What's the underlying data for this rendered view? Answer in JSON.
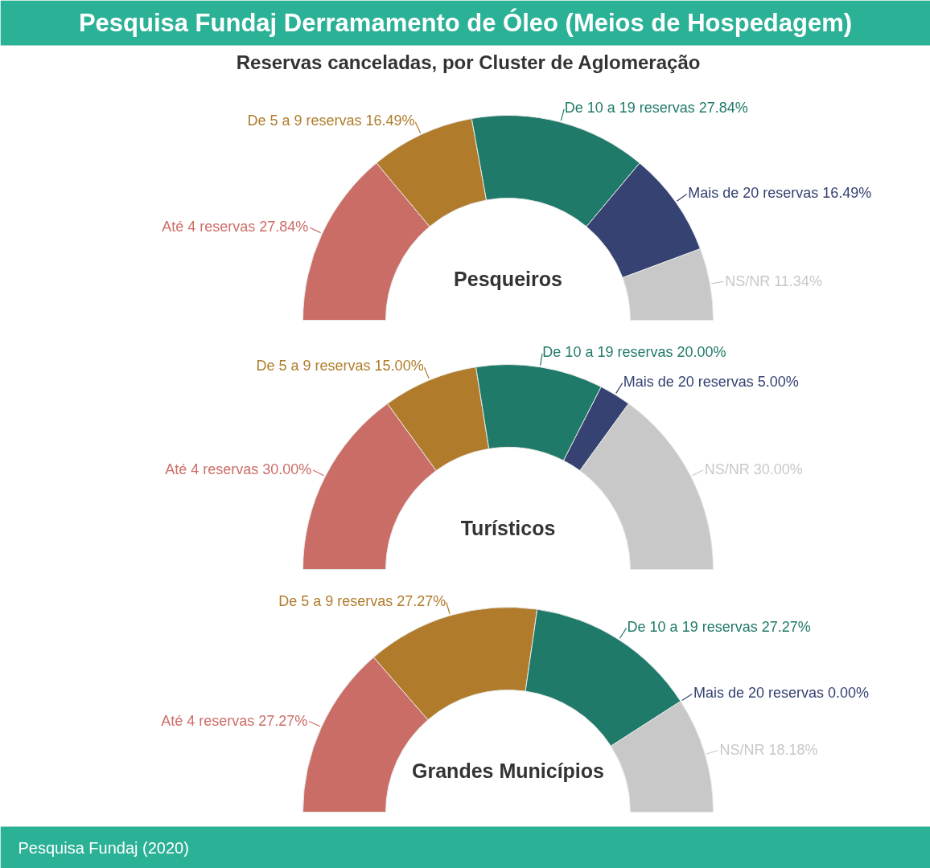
{
  "chart_data": [
    {
      "type": "donut",
      "title": "Pesquisa Fundaj Derramamento de Óleo (Meios de Hospedagem)",
      "subtitle": "Reservas canceladas, por Cluster de Aglomeração",
      "categories": [
        "Até 4 reservas",
        "De 5 a 9 reservas",
        "De 10 a 19 reservas",
        "Mais de 20 reservas",
        "NS/NR"
      ],
      "values": [
        27.84,
        16.49,
        27.84,
        16.49,
        11.34
      ],
      "value_labels": [
        "27.84%",
        "16.49%",
        "27.84%",
        "16.49%",
        "11.34%"
      ],
      "colors": [
        "#cb6d67",
        "#b07c2b",
        "#207a69",
        "#354272",
        "#c8c8c8"
      ],
      "annotations": [
        "Pesqueiros"
      ]
    },
    {
      "type": "donut",
      "categories": [
        "Até 4 reservas",
        "De 5 a 9 reservas",
        "De 10 a 19 reservas",
        "Mais de 20 reservas",
        "NS/NR"
      ],
      "values": [
        30.0,
        15.0,
        20.0,
        5.0,
        30.0
      ],
      "value_labels": [
        "30.00%",
        "15.00%",
        "20.00%",
        "5.00%",
        "30.00%"
      ],
      "colors": [
        "#cb6d67",
        "#b07c2b",
        "#207a69",
        "#354272",
        "#c8c8c8"
      ],
      "annotations": [
        "Turísticos"
      ]
    },
    {
      "type": "donut",
      "categories": [
        "Até 4 reservas",
        "De 5 a 9 reservas",
        "De 10 a 19 reservas",
        "Mais de 20 reservas",
        "NS/NR"
      ],
      "values": [
        27.27,
        27.27,
        27.27,
        0.0,
        18.18
      ],
      "value_labels": [
        "27.27%",
        "27.27%",
        "27.27%",
        "0.00%",
        "18.18%"
      ],
      "colors": [
        "#cb6d67",
        "#b07c2b",
        "#207a69",
        "#354272",
        "#c8c8c8"
      ],
      "annotations": [
        "Grandes Municípios",
        "Pesquisa Fundaj (2020)"
      ]
    }
  ]
}
